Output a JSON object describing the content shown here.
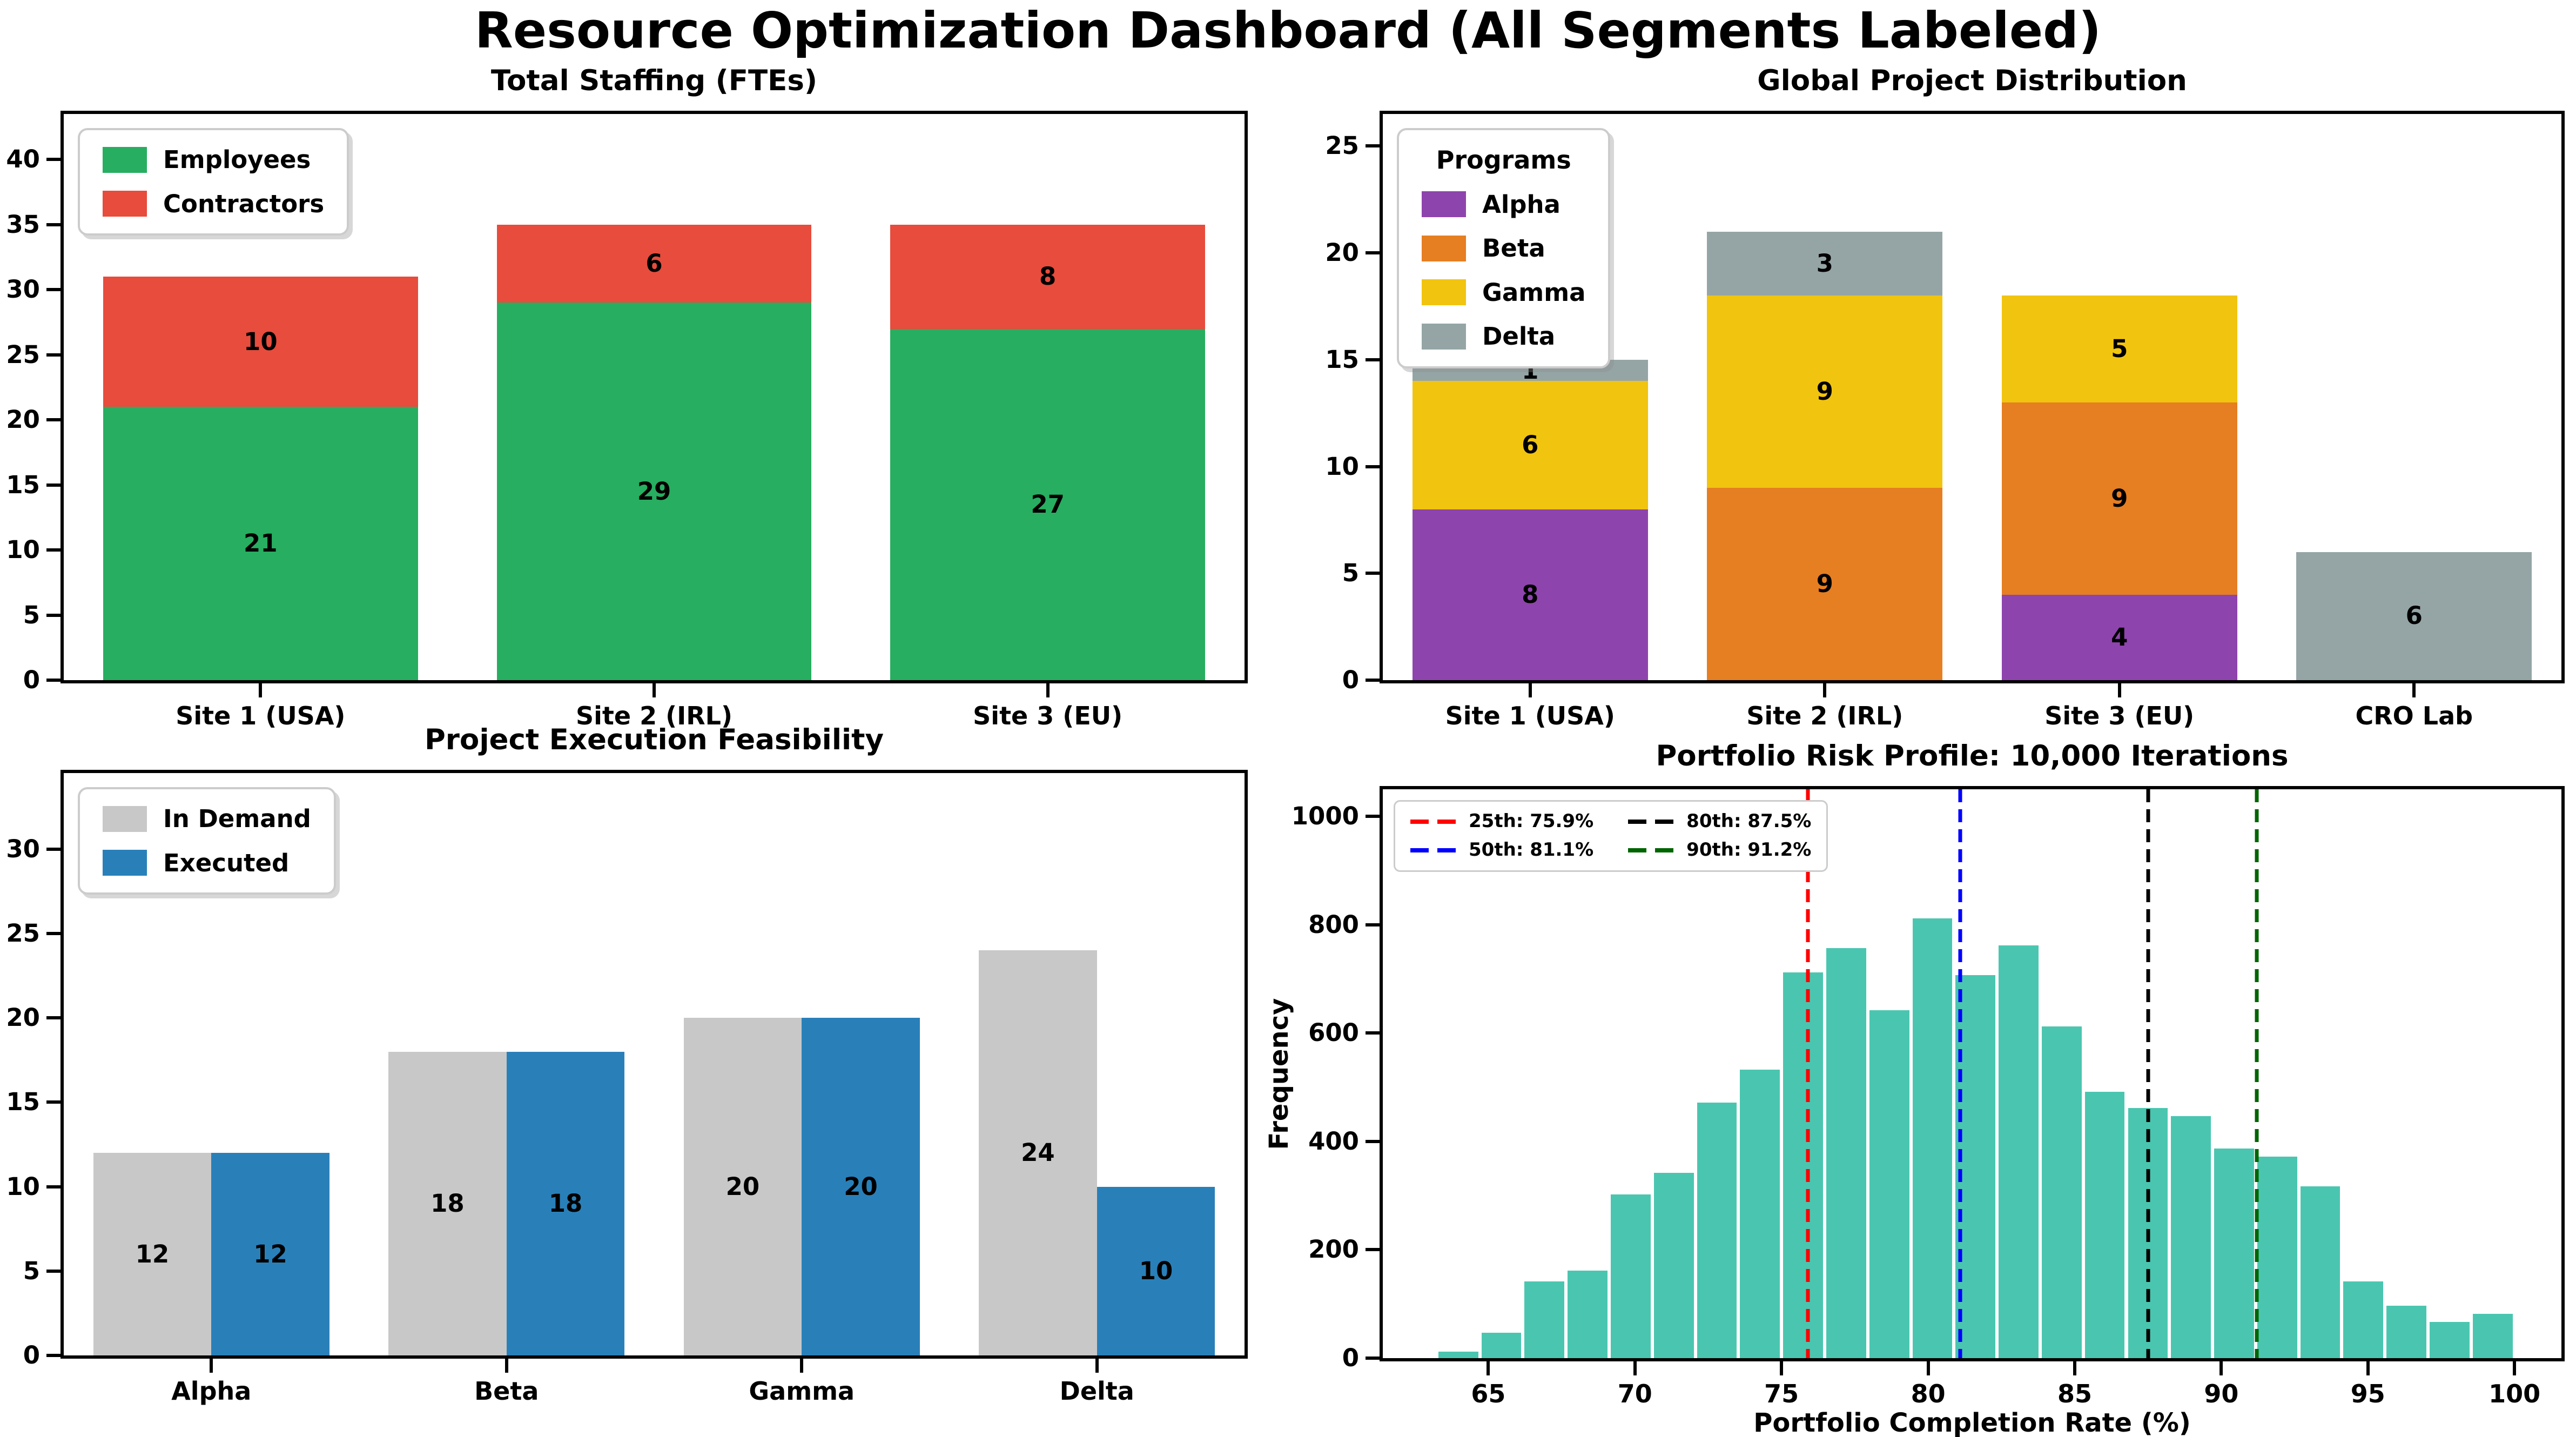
{
  "figure": {
    "title": "Resource Optimization Dashboard (All Segments Labeled)",
    "background": "#ffffff"
  },
  "chart_data": "see charts[]",
  "charts": [
    {
      "id": "staffing",
      "type": "stacked_bar",
      "title": "Total Staffing (FTEs)",
      "categories": [
        "Site 1 (USA)",
        "Site 2 (IRL)",
        "Site 3 (EU)"
      ],
      "series": [
        {
          "name": "Employees",
          "color": "#27ae60",
          "values": [
            21,
            29,
            27
          ]
        },
        {
          "name": "Contractors",
          "color": "#e74c3c",
          "values": [
            10,
            6,
            8
          ]
        }
      ],
      "totals": [
        31,
        35,
        35
      ],
      "ylim": [
        0,
        43.5
      ],
      "yticks": [
        0,
        5,
        10,
        15,
        20,
        25,
        30,
        35,
        40
      ],
      "legend": {
        "items_from": "series"
      }
    },
    {
      "id": "projects",
      "type": "stacked_bar",
      "title": "Global Project Distribution",
      "categories": [
        "Site 1 (USA)",
        "Site 2 (IRL)",
        "Site 3 (EU)",
        "CRO Lab"
      ],
      "series": [
        {
          "name": "Alpha",
          "color": "#8e44ad",
          "values": [
            8,
            0,
            4,
            0
          ]
        },
        {
          "name": "Beta",
          "color": "#e67e22",
          "values": [
            0,
            9,
            9,
            0
          ]
        },
        {
          "name": "Gamma",
          "color": "#f1c40f",
          "values": [
            6,
            9,
            5,
            0
          ]
        },
        {
          "name": "Delta",
          "color": "#95a5a6",
          "values": [
            1,
            3,
            0,
            6
          ]
        }
      ],
      "totals": [
        15,
        21,
        18,
        6
      ],
      "ylim": [
        0,
        26.5
      ],
      "yticks": [
        0,
        5,
        10,
        15,
        20,
        25
      ],
      "legend": {
        "title": "Programs",
        "items_from": "series"
      }
    },
    {
      "id": "feasibility",
      "type": "grouped_bar",
      "title": "Project Execution Feasibility",
      "categories": [
        "Alpha",
        "Beta",
        "Gamma",
        "Delta"
      ],
      "series": [
        {
          "name": "In Demand",
          "color": "#c8c8c8",
          "values": [
            12,
            18,
            20,
            24
          ]
        },
        {
          "name": "Executed",
          "color": "#2980b9",
          "values": [
            12,
            18,
            20,
            10
          ]
        }
      ],
      "ylim": [
        0,
        34.5
      ],
      "yticks": [
        0,
        5,
        10,
        15,
        20,
        25,
        30
      ],
      "legend": {
        "items_from": "series"
      }
    },
    {
      "id": "risk",
      "type": "histogram",
      "title": "Portfolio Risk Profile: 10,000 Iterations",
      "xlabel": "Portfolio Completion Rate (%)",
      "ylabel": "Frequency",
      "bar_color": "#4ac6b0",
      "bin_start": 63.24,
      "bin_width": 1.47,
      "frequencies": [
        15,
        50,
        145,
        165,
        305,
        345,
        475,
        535,
        715,
        760,
        645,
        815,
        710,
        765,
        615,
        495,
        465,
        450,
        390,
        375,
        320,
        145,
        100,
        70,
        85
      ],
      "xlim": [
        61.4,
        101.6
      ],
      "xticks": [
        65,
        70,
        75,
        80,
        85,
        90,
        95,
        100
      ],
      "ylim": [
        0,
        1050
      ],
      "yticks": [
        0,
        200,
        400,
        600,
        800,
        1000
      ],
      "percentiles": [
        {
          "label": "25th: 75.9%",
          "value": 75.9,
          "color": "#ff0000"
        },
        {
          "label": "50th: 81.1%",
          "value": 81.1,
          "color": "#0000ff"
        },
        {
          "label": "80th: 87.5%",
          "value": 87.5,
          "color": "#000000"
        },
        {
          "label": "90th: 91.2%",
          "value": 91.2,
          "color": "#006400"
        }
      ]
    }
  ]
}
